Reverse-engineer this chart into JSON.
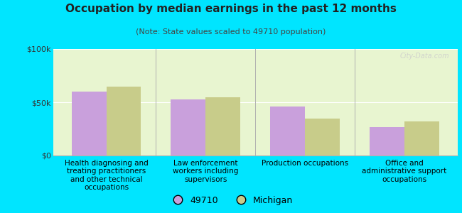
{
  "title": "Occupation by median earnings in the past 12 months",
  "subtitle": "(Note: State values scaled to 49710 population)",
  "categories": [
    "Health diagnosing and\ntreating practitioners\nand other technical\noccupations",
    "Law enforcement\nworkers including\nsupervisors",
    "Production occupations",
    "Office and\nadministrative support\noccupations"
  ],
  "values_49710": [
    60000,
    53000,
    46000,
    27000
  ],
  "values_michigan": [
    65000,
    55000,
    35000,
    32000
  ],
  "color_49710": "#c9a0dc",
  "color_michigan": "#c8cc8a",
  "background_outer": "#00e5ff",
  "background_inner": "#e8f5d0",
  "ylim": [
    0,
    100000
  ],
  "yticks": [
    0,
    50000,
    100000
  ],
  "ytick_labels": [
    "$0",
    "$50k",
    "$100k"
  ],
  "legend_label_49710": "49710",
  "legend_label_michigan": "Michigan",
  "watermark": "City-Data.com",
  "bar_width": 0.35,
  "title_fontsize": 11,
  "subtitle_fontsize": 8,
  "tick_fontsize": 8,
  "label_fontsize": 7.5
}
